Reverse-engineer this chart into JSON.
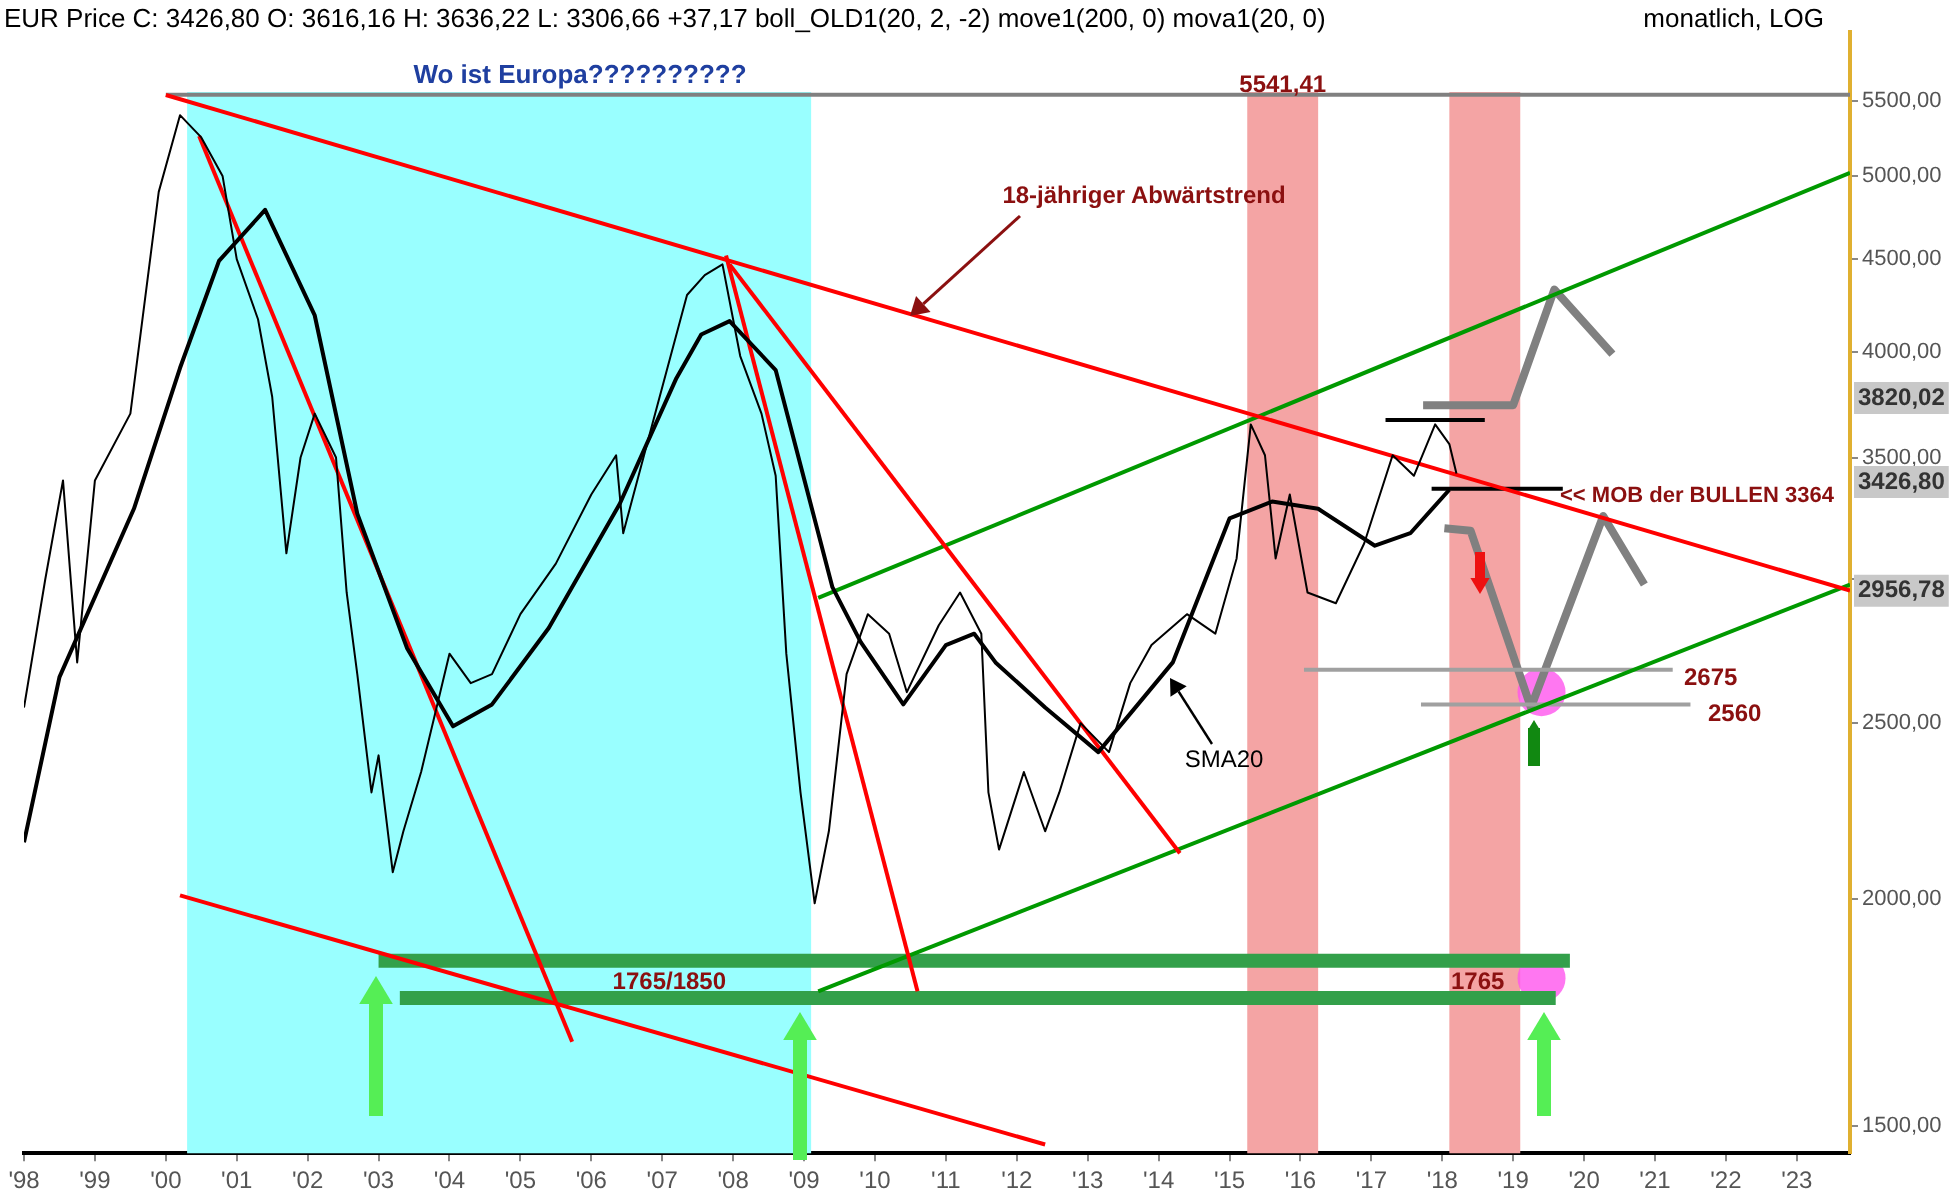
{
  "chart_data": {
    "type": "line",
    "title": "Wo ist Europa??????????",
    "subtitle": "EUR Price C: 3426,80 O: 3616,16 H: 3636,22 L: 3306,66 +37,17 boll_OLD1(20, 2, -2) move1(200, 0) mova1(20, 0)",
    "log": true,
    "grid": false,
    "legend": false,
    "marker": "none",
    "xlim": [
      1998,
      2023.75
    ],
    "xticks": [
      {
        "value": 1998,
        "label": "'98"
      },
      {
        "value": 1999,
        "label": "'99"
      },
      {
        "value": 2000,
        "label": "'00"
      },
      {
        "value": 2001,
        "label": "'01"
      },
      {
        "value": 2002,
        "label": "'02"
      },
      {
        "value": 2003,
        "label": "'03"
      },
      {
        "value": 2004,
        "label": "'04"
      },
      {
        "value": 2005,
        "label": "'05"
      },
      {
        "value": 2006,
        "label": "'06"
      },
      {
        "value": 2007,
        "label": "'07"
      },
      {
        "value": 2008,
        "label": "'08"
      },
      {
        "value": 2009,
        "label": "'09"
      },
      {
        "value": 2010,
        "label": "'10"
      },
      {
        "value": 2011,
        "label": "'11"
      },
      {
        "value": 2012,
        "label": "'12"
      },
      {
        "value": 2013,
        "label": "'13"
      },
      {
        "value": 2014,
        "label": "'14"
      },
      {
        "value": 2015,
        "label": "'15"
      },
      {
        "value": 2016,
        "label": "'16"
      },
      {
        "value": 2017,
        "label": "'17"
      },
      {
        "value": 2018,
        "label": "'18"
      },
      {
        "value": 2019,
        "label": "'19"
      },
      {
        "value": 2020,
        "label": "'20"
      },
      {
        "value": 2021,
        "label": "'21"
      },
      {
        "value": 2022,
        "label": "'22"
      },
      {
        "value": 2023,
        "label": "'23"
      }
    ],
    "ylim": [
      1450,
      6000
    ],
    "yticks": [
      {
        "value": 1500,
        "label": "1500,00"
      },
      {
        "value": 2000,
        "label": "2000,00"
      },
      {
        "value": 2500,
        "label": "2500,00"
      },
      {
        "value": 3000,
        "label": null
      },
      {
        "value": 3500,
        "label": "3500,00"
      },
      {
        "value": 4000,
        "label": "4000,00"
      },
      {
        "value": 4500,
        "label": "4500,00"
      },
      {
        "value": 5000,
        "label": "5000,00"
      },
      {
        "value": 5500,
        "label": "5500,00"
      }
    ],
    "bands": [
      {
        "axis": "x",
        "from": 2000.3,
        "to": 2009.1,
        "color": "#99ffff"
      },
      {
        "axis": "x",
        "from": 2015.25,
        "to": 2016.25,
        "color": "#f4a4a4"
      },
      {
        "axis": "x",
        "from": 2018.1,
        "to": 2019.1,
        "color": "#f4a4a4"
      }
    ],
    "series": [
      {
        "color": "#000000",
        "x": [
          1998.0,
          1998.3,
          1998.55,
          1998.75,
          1999.0,
          1999.5,
          1999.9,
          2000.2,
          2000.5,
          2000.8,
          2001.0,
          2001.3,
          2001.5,
          2001.7,
          2001.9,
          2002.1,
          2002.4,
          2002.55,
          2002.7,
          2002.9,
          2003.0,
          2003.2,
          2003.35,
          2003.6,
          2004.0,
          2004.3,
          2004.6,
          2005.0,
          2005.5,
          2006.0,
          2006.35,
          2006.45,
          2006.9,
          2007.35,
          2007.6,
          2007.85,
          2008.1,
          2008.4,
          2008.6,
          2008.75,
          2008.95,
          2009.15,
          2009.35,
          2009.6,
          2009.9,
          2010.2,
          2010.45,
          2010.9,
          2011.2,
          2011.5,
          2011.6,
          2011.75,
          2012.1,
          2012.4,
          2012.6,
          2012.9,
          2013.3,
          2013.6,
          2013.9,
          2014.4,
          2014.8,
          2015.1,
          2015.3,
          2015.5,
          2015.65,
          2015.85,
          2016.1,
          2016.5,
          2016.9,
          2017.3,
          2017.6,
          2017.9,
          2018.1,
          2018.2
        ],
        "values": [
          2550,
          3000,
          3400,
          2700,
          3400,
          3700,
          4900,
          5400,
          5250,
          5000,
          4500,
          4170,
          3780,
          3100,
          3500,
          3700,
          3500,
          2950,
          2660,
          2290,
          2400,
          2070,
          2180,
          2350,
          2730,
          2630,
          2660,
          2870,
          3060,
          3340,
          3510,
          3180,
          3700,
          4300,
          4410,
          4470,
          3980,
          3700,
          3420,
          2730,
          2290,
          1990,
          2180,
          2660,
          2870,
          2800,
          2600,
          2830,
          2950,
          2800,
          2290,
          2130,
          2350,
          2180,
          2290,
          2500,
          2410,
          2630,
          2760,
          2870,
          2800,
          3080,
          3650,
          3510,
          3080,
          3340,
          2950,
          2910,
          3140,
          3510,
          3420,
          3650,
          3560,
          3430
        ]
      },
      {
        "color": "#000000",
        "x": [
          1998.0,
          1998.5,
          1999.55,
          2000.2,
          2000.75,
          2001.4,
          2002.1,
          2002.7,
          2003.4,
          2004.05,
          2004.6,
          2005.4,
          2006.4,
          2007.2,
          2007.55,
          2007.95,
          2008.6,
          2009.4,
          2009.8,
          2010.4,
          2011.0,
          2011.4,
          2011.7,
          2012.4,
          2013.15,
          2014.2,
          2015.0,
          2015.6,
          2016.25,
          2017.05,
          2017.55,
          2018.1
        ],
        "values": [
          2150,
          2650,
          3280,
          3920,
          4490,
          4790,
          4190,
          3260,
          2750,
          2490,
          2560,
          2820,
          3300,
          3870,
          4090,
          4160,
          3910,
          2970,
          2770,
          2560,
          2760,
          2800,
          2700,
          2550,
          2410,
          2700,
          3240,
          3310,
          3280,
          3130,
          3180,
          3360
        ]
      },
      {
        "color": "#ff0000",
        "x": [
          2000.0,
          2023.75
        ],
        "values": [
          5540,
          2957
        ]
      },
      {
        "color": "#ff0000",
        "x": [
          2000.2,
          2012.4
        ],
        "values": [
          2010,
          1466
        ]
      },
      {
        "color": "#ff0000",
        "x": [
          2000.47,
          2005.73
        ],
        "values": [
          5260,
          1670
        ]
      },
      {
        "color": "#ff0000",
        "x": [
          2007.9,
          2010.6
        ],
        "values": [
          4520,
          1780
        ]
      },
      {
        "color": "#ff0000",
        "x": [
          2007.95,
          2014.3
        ],
        "values": [
          4470,
          2120
        ]
      },
      {
        "color": "#009900",
        "x": [
          2009.2,
          2023.75
        ],
        "values": [
          1780,
          2980
        ]
      },
      {
        "color": "#009900",
        "x": [
          2009.2,
          2023.75
        ],
        "values": [
          2930,
          5020
        ]
      },
      {
        "color": "#808080",
        "x": [
          2000.0,
          2023.75
        ],
        "values": [
          5541.41,
          5541.41
        ]
      },
      {
        "color": "#33a04a",
        "x": [
          2003.0,
          2019.8
        ],
        "values": [
          1850,
          1850
        ]
      },
      {
        "color": "#33a04a",
        "x": [
          2003.3,
          2019.6
        ],
        "values": [
          1765,
          1765
        ]
      },
      {
        "color": "#a0a0a0",
        "x": [
          2016.05,
          2021.25
        ],
        "values": [
          2675,
          2675
        ]
      },
      {
        "color": "#a0a0a0",
        "x": [
          2017.7,
          2021.5
        ],
        "values": [
          2560,
          2560
        ]
      },
      {
        "color": "#000000",
        "x": [
          2017.85,
          2019.7
        ],
        "values": [
          3364,
          3364
        ]
      },
      {
        "color": "#000000",
        "x": [
          2017.2,
          2018.6
        ],
        "values": [
          3670,
          3670
        ]
      },
      {
        "color": "#808080",
        "x": [
          2017.73,
          2019.0,
          2019.58,
          2020.4
        ],
        "values": [
          3740,
          3740,
          4330,
          3990
        ]
      },
      {
        "color": "#808080",
        "x": [
          2018.03,
          2018.4,
          2019.25,
          2020.27,
          2020.85
        ],
        "values": [
          3200,
          3190,
          2550,
          3250,
          2980
        ]
      },
      {
        "type": "scatter",
        "marker": "circle",
        "color": "#ff55ee",
        "x": [
          2019.4,
          2019.4
        ],
        "values": [
          2600,
          1810
        ]
      }
    ],
    "annotations": [
      "monatlich, LOG",
      "18-jähriger Abwärtstrend",
      "<< MOB der BULLEN 3364",
      "2675",
      "2560",
      "SMA20",
      {
        "text": "1765/1850",
        "x": 2007.1,
        "y": 1800
      },
      {
        "text": "1765",
        "x": 2018.5,
        "y": 1800
      },
      {
        "text": "5541,41",
        "x": 2015.75,
        "y": 5610
      },
      "3820,02",
      "3426,80",
      {
        "text": "2956,78",
        "x": 2023.75,
        "y": 2956.78
      }
    ]
  }
}
